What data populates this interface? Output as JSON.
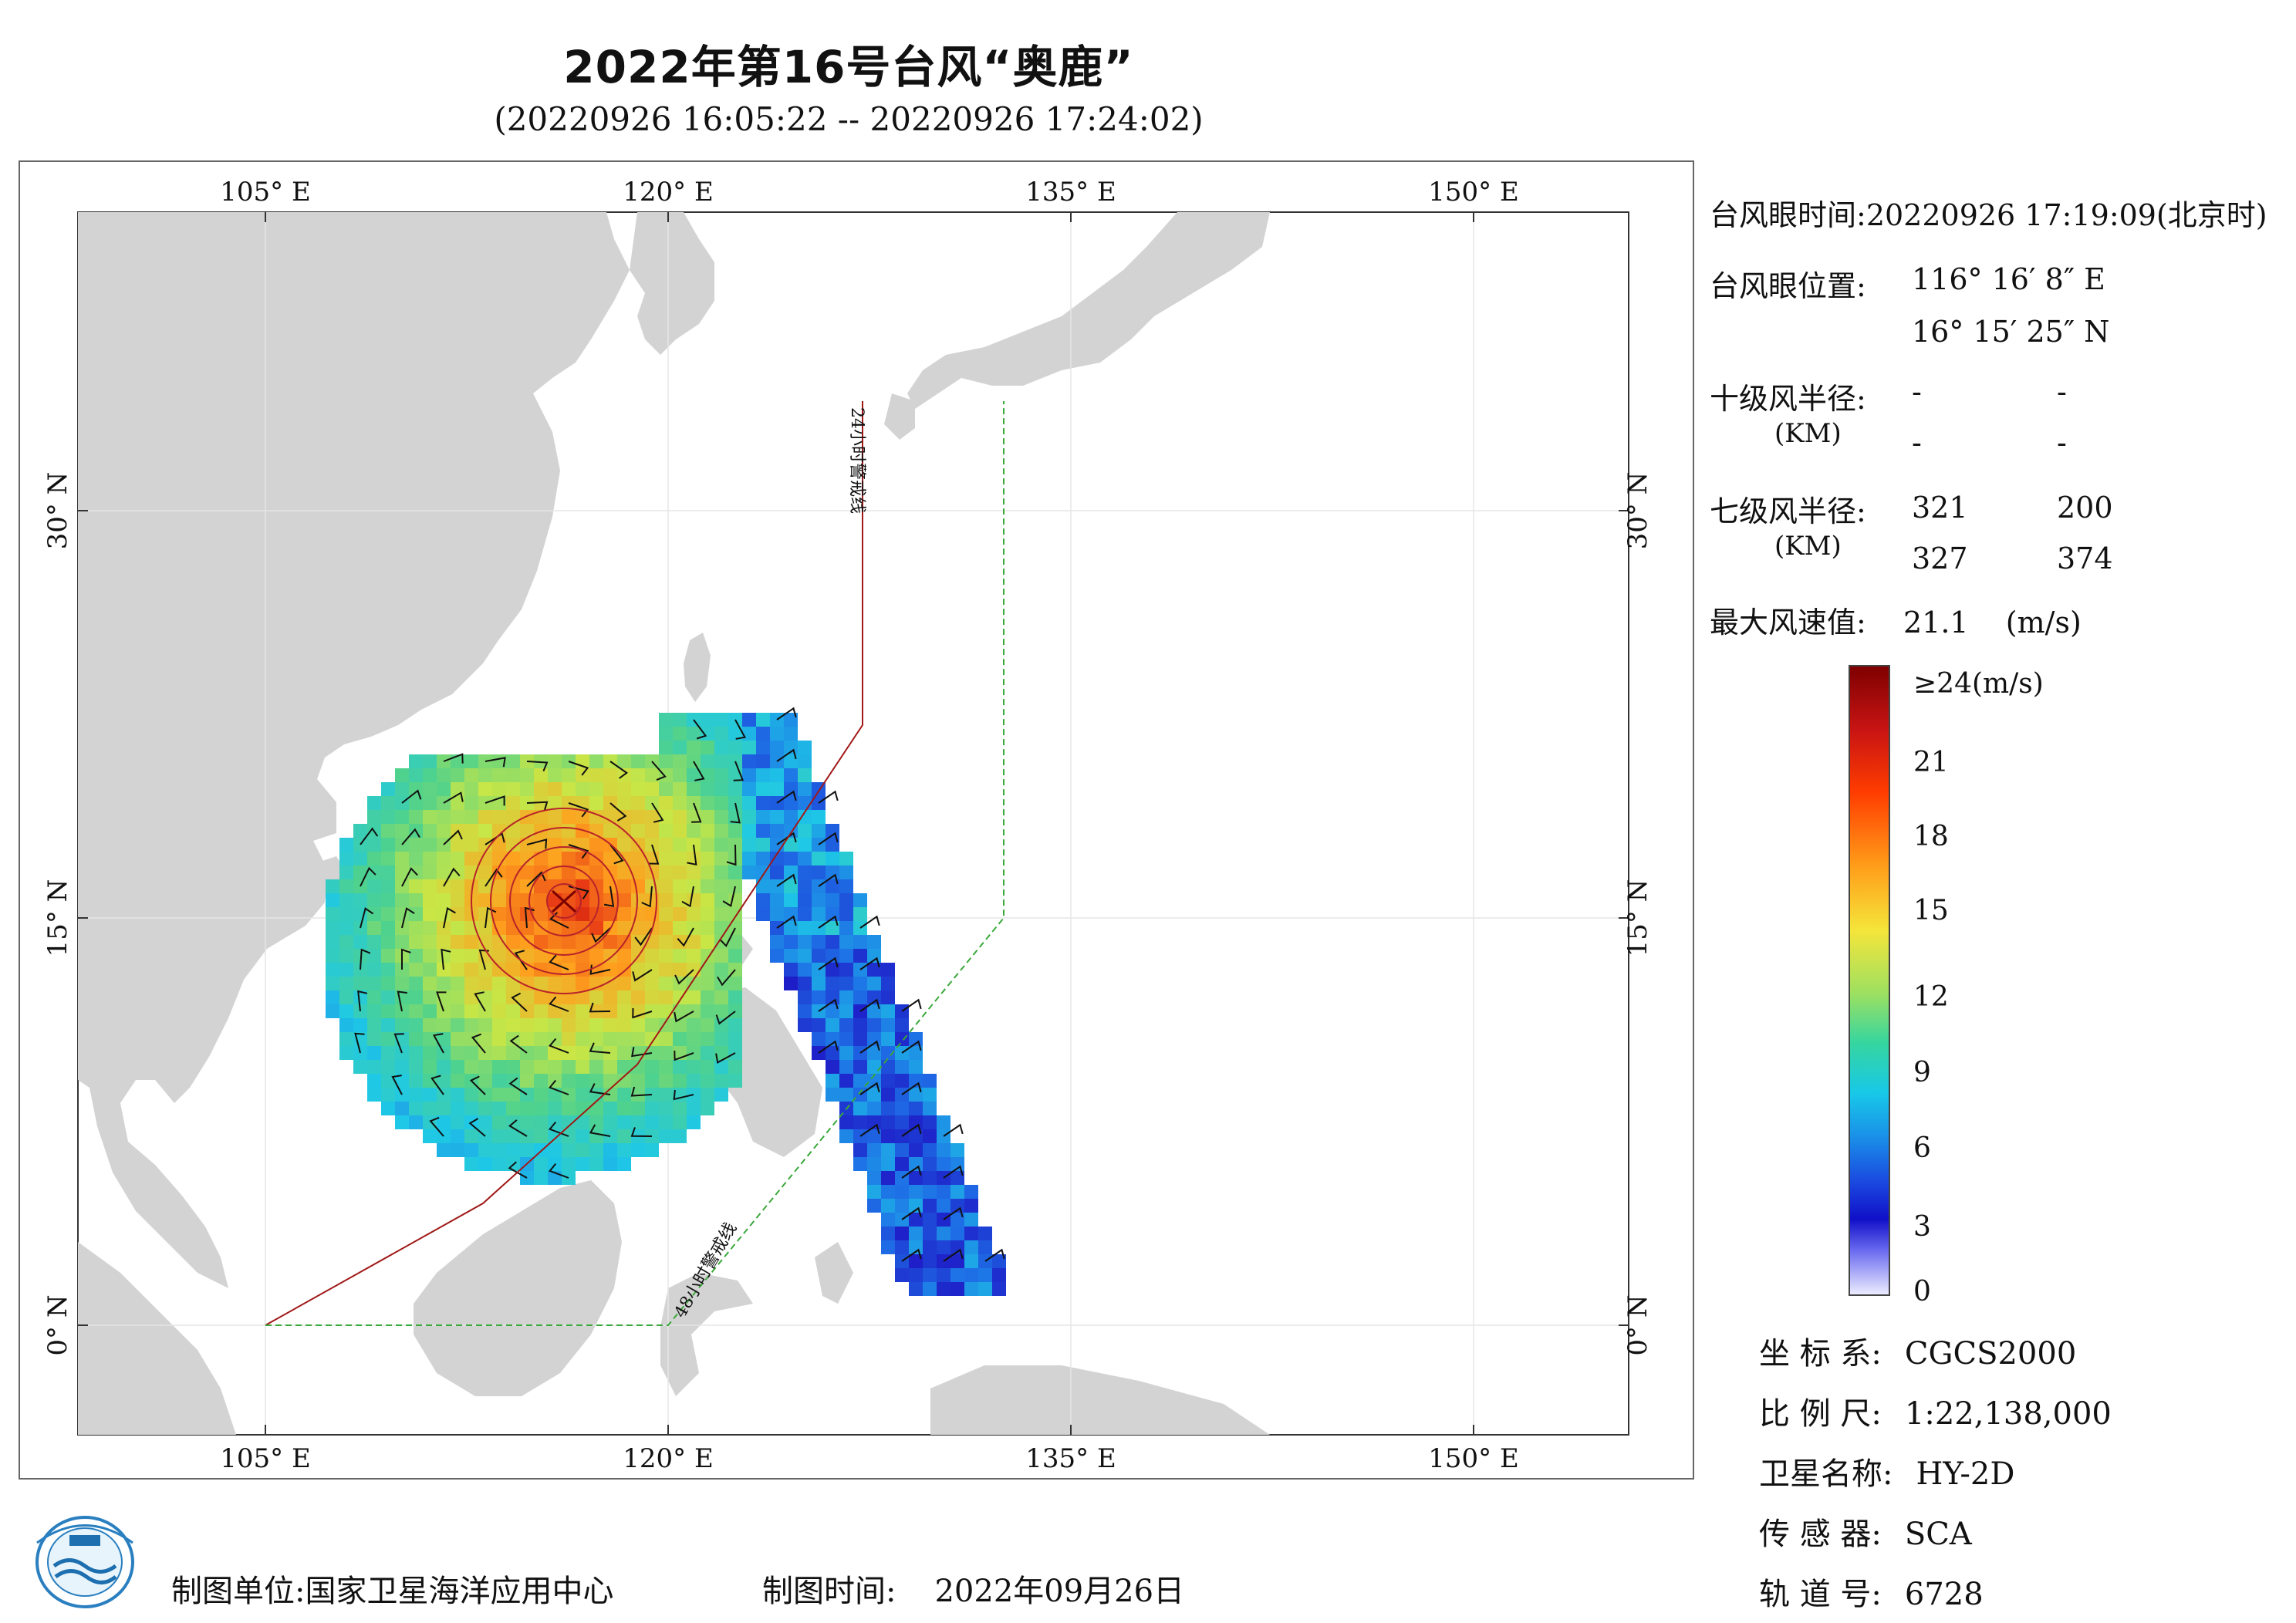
{
  "title": "2022年第16号台风“奥鹿”",
  "subtitle": "(20220926 16:05:22 -- 20220926 17:24:02)",
  "map": {
    "lon_ticks": [
      "105° E",
      "120° E",
      "135° E",
      "150° E"
    ],
    "lat_ticks": [
      "30° N",
      "15° N",
      "0° N"
    ],
    "warning_24h": "24小时警戒线",
    "warning_48h": "48小时警戒线",
    "colors": {
      "land": "#d3d3d3",
      "sea": "#ffffff",
      "line24": "#a01818",
      "line48": "#3aa83a"
    }
  },
  "info": {
    "eye_time_label": "台风眼时间:",
    "eye_time_value": "20220926 17:19:09(北京时)",
    "eye_pos_label": "台风眼位置:",
    "eye_lon": "116° 16′ 8″ E",
    "eye_lat": "16° 15′ 25″ N",
    "r10_label": "十级风半径:",
    "r10_unit": "(KM)",
    "r10_values": [
      "-",
      "-",
      "-",
      "-"
    ],
    "r7_label": "七级风半径:",
    "r7_unit": "(KM)",
    "r7_values": [
      "321",
      "200",
      "327",
      "374"
    ],
    "max_wind_label": "最大风速值:",
    "max_wind_value": "21.1",
    "max_wind_unit": "(m/s)"
  },
  "colorbar": {
    "labels": [
      "≥24(m/s)",
      "21",
      "18",
      "15",
      "12",
      "9",
      "6",
      "3",
      "0"
    ],
    "min": 0,
    "max": 24
  },
  "meta": {
    "crs_label": "坐 标 系:",
    "crs_value": "CGCS2000",
    "scale_label": "比 例 尺:",
    "scale_value": "1:22,138,000",
    "satellite_label": "卫星名称:",
    "satellite_value": "HY-2D",
    "sensor_label": "传 感 器:",
    "sensor_value": "SCA",
    "orbit_label": "轨 道 号:",
    "orbit_value": "6728"
  },
  "footer": {
    "producer_label": "制图单位:",
    "producer_value": "国家卫星海洋应用中心",
    "date_label": "制图时间:",
    "date_value": "2022年09月26日"
  }
}
